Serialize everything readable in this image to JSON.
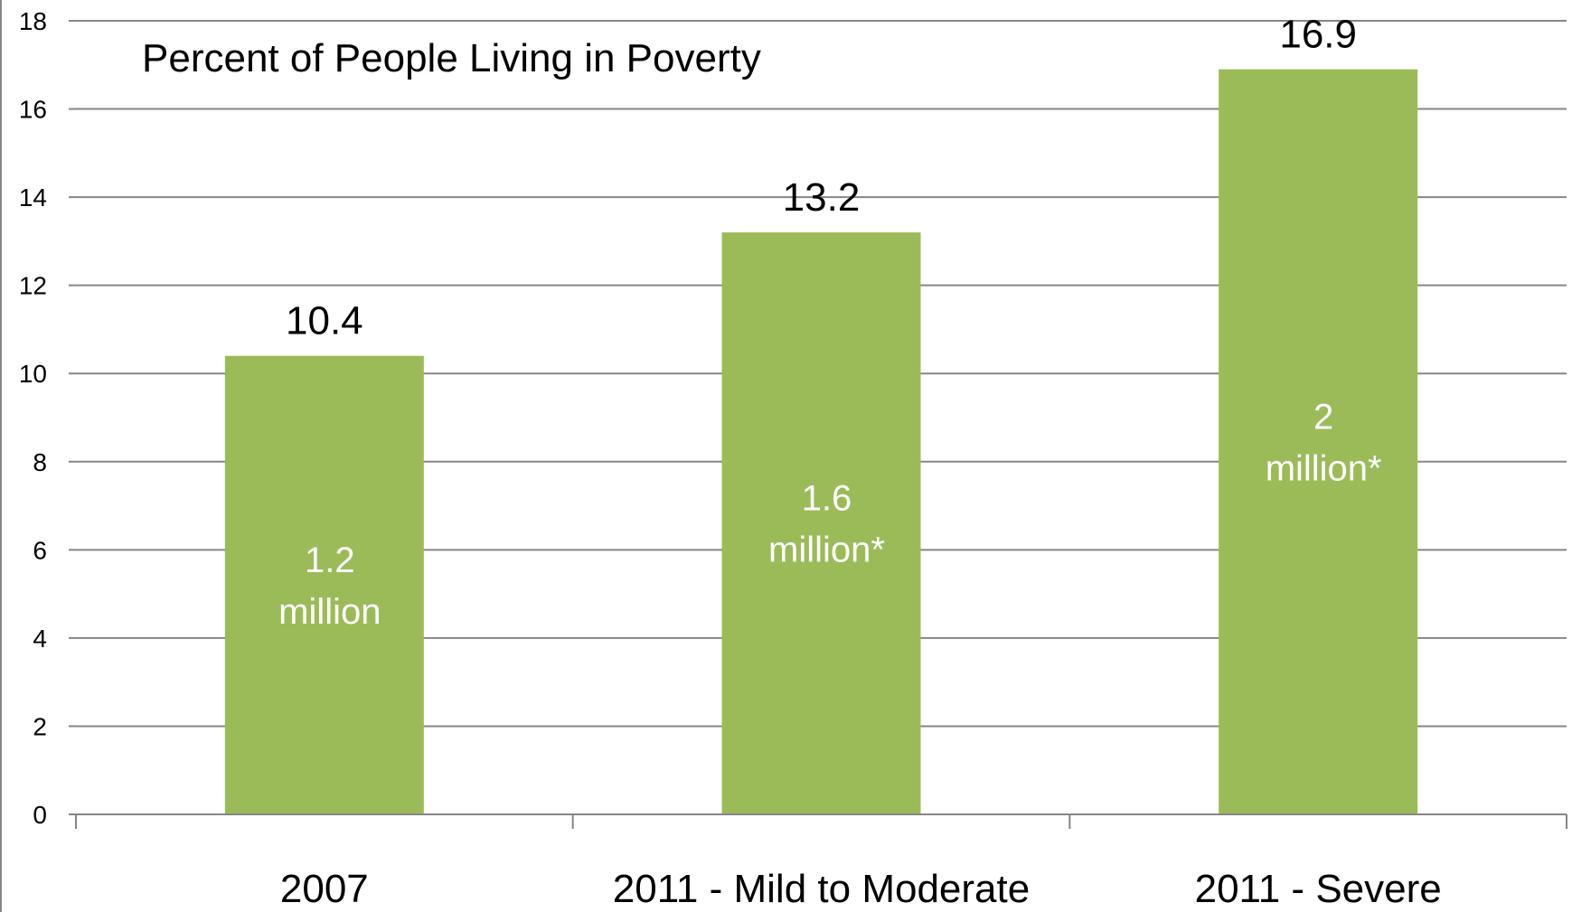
{
  "chart_data": {
    "type": "bar",
    "title": "Percent of People Living in Poverty",
    "xlabel": "",
    "ylabel": "",
    "categories": [
      "2007",
      "2011 - Mild to Moderate",
      "2011 - Severe"
    ],
    "values": [
      10.4,
      13.2,
      16.9
    ],
    "data_labels": [
      "10.4",
      "13.2",
      "16.9"
    ],
    "inner_labels": [
      [
        "1.2",
        "million"
      ],
      [
        "1.6",
        "million*"
      ],
      [
        "2",
        "million*"
      ]
    ],
    "ylim": [
      0,
      18
    ],
    "yticks": [
      0,
      2,
      4,
      6,
      8,
      10,
      12,
      14,
      16,
      18
    ],
    "grid": true,
    "legend": "none",
    "colors": {
      "bar": "#9bbb59",
      "grid": "#868686",
      "axis": "#868686",
      "inner_text": "#ffffff"
    }
  }
}
